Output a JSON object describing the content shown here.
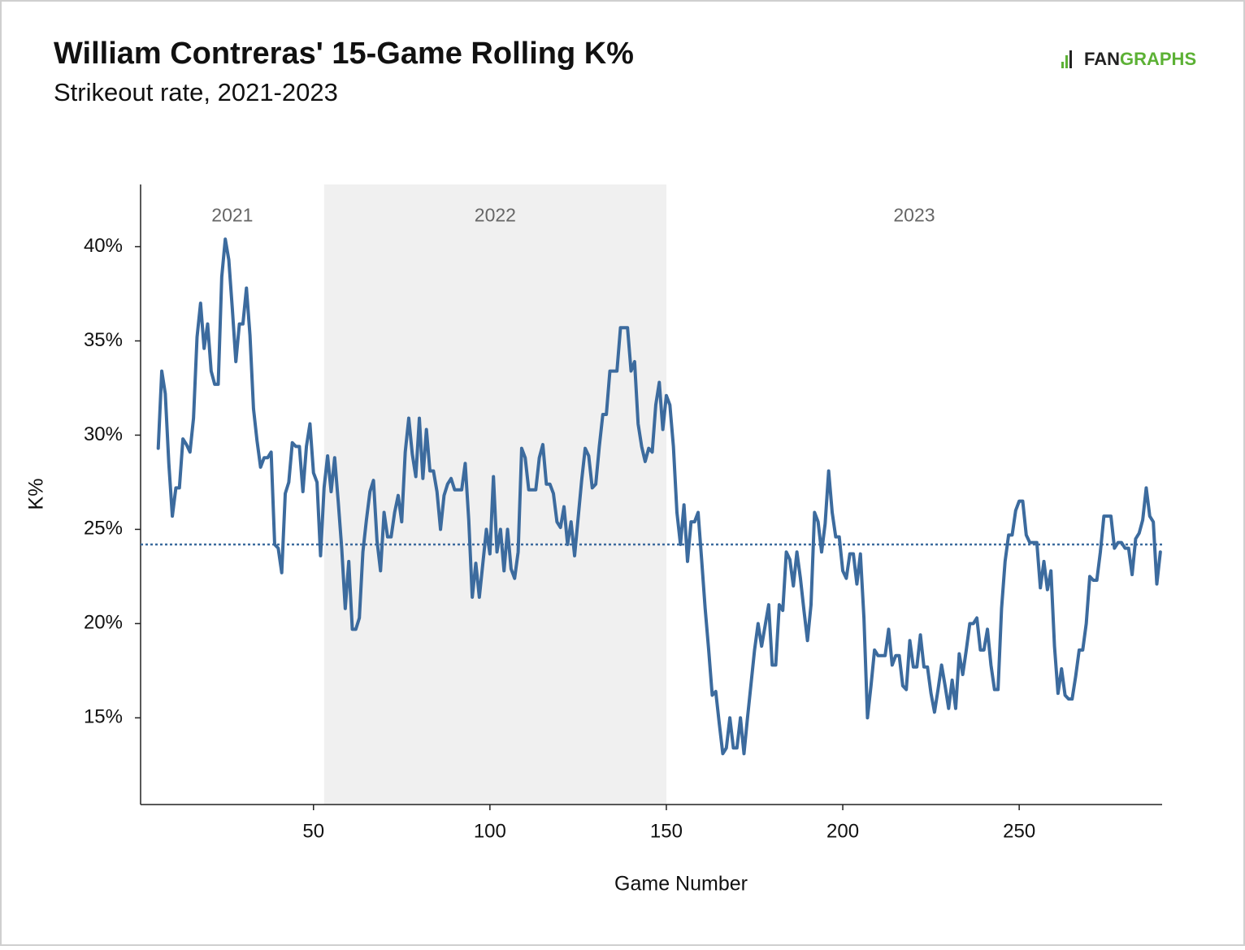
{
  "chart_data": {
    "type": "line",
    "title": "William Contreras' 15-Game Rolling K%",
    "subtitle": "Strikeout rate, 2021-2023",
    "logo": {
      "dark": "FAN",
      "green": "GRAPHS"
    },
    "xlabel": "Game Number",
    "ylabel": "K%",
    "color": "#3c6b9e",
    "reference_line": 24.2,
    "regions": [
      {
        "label": "2021",
        "start": 1,
        "end": 53,
        "shaded": false
      },
      {
        "label": "2022",
        "start": 53,
        "end": 150,
        "shaded": true
      },
      {
        "label": "2023",
        "start": 150,
        "end": 290.5,
        "shaded": false
      }
    ],
    "xlim": [
      1,
      290.5
    ],
    "xticks": [
      50,
      100,
      150,
      200,
      250
    ],
    "ylim": [
      10.4,
      43.3
    ],
    "yticks": [
      {
        "value": 15,
        "label": "15%"
      },
      {
        "value": 20,
        "label": "20%"
      },
      {
        "value": 25,
        "label": "25%"
      },
      {
        "value": 30,
        "label": "30%"
      },
      {
        "value": 35,
        "label": "35%"
      },
      {
        "value": 40,
        "label": "40%"
      }
    ],
    "x": [
      6,
      7,
      8,
      9,
      10,
      11,
      12,
      13,
      14,
      15,
      16,
      17,
      18,
      19,
      20,
      21,
      22,
      23,
      24,
      25,
      26,
      27,
      28,
      29,
      30,
      31,
      32,
      33,
      34,
      35,
      36,
      37,
      38,
      39,
      40,
      41,
      42,
      43,
      44,
      45,
      46,
      47,
      48,
      49,
      50,
      51,
      52,
      53,
      54,
      55,
      56,
      57,
      58,
      59,
      60,
      61,
      62,
      63,
      64,
      65,
      66,
      67,
      68,
      69,
      70,
      71,
      72,
      73,
      74,
      75,
      76,
      77,
      78,
      79,
      80,
      81,
      82,
      83,
      84,
      85,
      86,
      87,
      88,
      89,
      90,
      91,
      92,
      93,
      94,
      95,
      96,
      97,
      98,
      99,
      100,
      101,
      102,
      103,
      104,
      105,
      106,
      107,
      108,
      109,
      110,
      111,
      112,
      113,
      114,
      115,
      116,
      117,
      118,
      119,
      120,
      121,
      122,
      123,
      124,
      125,
      126,
      127,
      128,
      129,
      130,
      131,
      132,
      133,
      134,
      135,
      136,
      137,
      138,
      139,
      140,
      141,
      142,
      143,
      144,
      145,
      146,
      147,
      148,
      149,
      150,
      151,
      152,
      153,
      154,
      155,
      156,
      157,
      158,
      159,
      160,
      161,
      162,
      163,
      164,
      165,
      166,
      167,
      168,
      169,
      170,
      171,
      172,
      173,
      174,
      175,
      176,
      177,
      178,
      179,
      180,
      181,
      182,
      183,
      184,
      185,
      186,
      187,
      188,
      189,
      190,
      191,
      192,
      193,
      194,
      195,
      196,
      197,
      198,
      199,
      200,
      201,
      202,
      203,
      204,
      205,
      206,
      207,
      208,
      209,
      210,
      211,
      212,
      213,
      214,
      215,
      216,
      217,
      218,
      219,
      220,
      221,
      222,
      223,
      224,
      225,
      226,
      227,
      228,
      229,
      230,
      231,
      232,
      233,
      234,
      235,
      236,
      237,
      238,
      239,
      240,
      241,
      242,
      243,
      244,
      245,
      246,
      247,
      248,
      249,
      250,
      251,
      252,
      253,
      254,
      255,
      256,
      257,
      258,
      259,
      260,
      261,
      262,
      263,
      264,
      265,
      266,
      267,
      268,
      269,
      270,
      271,
      272,
      273,
      274,
      275,
      276,
      277,
      278,
      279,
      280,
      281,
      282,
      283,
      284,
      285,
      286,
      287,
      288,
      289,
      290
    ],
    "values": [
      29.3,
      33.4,
      32.2,
      28.5,
      25.7,
      27.2,
      27.2,
      29.8,
      29.5,
      29.1,
      30.9,
      35.2,
      37.0,
      34.6,
      35.9,
      33.4,
      32.7,
      32.7,
      38.4,
      40.4,
      39.3,
      36.7,
      33.9,
      35.9,
      35.9,
      37.8,
      35.3,
      31.4,
      29.7,
      28.3,
      28.8,
      28.8,
      29.1,
      24.2,
      24.0,
      22.7,
      26.9,
      27.5,
      29.6,
      29.4,
      29.4,
      27.0,
      29.4,
      30.6,
      28.0,
      27.5,
      23.6,
      27.2,
      28.9,
      27.0,
      28.8,
      26.5,
      24.0,
      20.8,
      23.3,
      19.7,
      19.7,
      20.3,
      23.8,
      25.5,
      27.0,
      27.6,
      24.4,
      22.8,
      25.9,
      24.6,
      24.6,
      25.9,
      26.8,
      25.4,
      29.1,
      30.9,
      29.0,
      27.8,
      30.9,
      27.7,
      30.3,
      28.1,
      28.1,
      27.0,
      25.0,
      26.8,
      27.4,
      27.7,
      27.1,
      27.1,
      27.1,
      28.5,
      25.5,
      21.4,
      23.2,
      21.4,
      23.2,
      25.0,
      23.7,
      27.8,
      23.8,
      25.0,
      22.8,
      25.0,
      22.9,
      22.4,
      23.8,
      29.3,
      28.8,
      27.1,
      27.1,
      27.1,
      28.8,
      29.5,
      27.4,
      27.4,
      26.9,
      25.4,
      25.1,
      26.2,
      24.2,
      25.4,
      23.6,
      25.6,
      27.6,
      29.3,
      28.9,
      27.2,
      27.4,
      29.4,
      31.1,
      31.1,
      33.4,
      33.4,
      33.4,
      35.7,
      35.7,
      35.7,
      33.4,
      33.9,
      30.6,
      29.4,
      28.6,
      29.3,
      29.1,
      31.6,
      32.8,
      30.3,
      32.1,
      31.6,
      29.4,
      25.9,
      24.2,
      26.3,
      23.3,
      25.4,
      25.4,
      25.9,
      23.4,
      20.8,
      18.6,
      16.2,
      16.4,
      14.7,
      13.1,
      13.4,
      15.0,
      13.4,
      13.4,
      15.0,
      13.1,
      15.0,
      16.8,
      18.6,
      20.0,
      18.8,
      19.9,
      21.0,
      17.8,
      17.8,
      21.0,
      20.7,
      23.8,
      23.4,
      22.0,
      23.8,
      22.4,
      20.7,
      19.1,
      21.0,
      25.9,
      25.4,
      23.8,
      25.3,
      28.1,
      25.9,
      24.6,
      24.6,
      22.8,
      22.4,
      23.7,
      23.7,
      22.1,
      23.7,
      20.3,
      15.0,
      16.7,
      18.6,
      18.3,
      18.3,
      18.3,
      19.7,
      17.8,
      18.3,
      18.3,
      16.7,
      16.5,
      19.1,
      17.7,
      17.7,
      19.4,
      17.7,
      17.7,
      16.3,
      15.3,
      16.5,
      17.8,
      16.7,
      15.5,
      17.0,
      15.5,
      18.4,
      17.3,
      18.6,
      20.0,
      20.0,
      20.3,
      18.6,
      18.6,
      19.7,
      17.8,
      16.5,
      16.5,
      20.8,
      23.3,
      24.7,
      24.7,
      26.0,
      26.5,
      26.5,
      24.7,
      24.3,
      24.3,
      24.3,
      21.9,
      23.3,
      21.8,
      22.8,
      18.8,
      16.3,
      17.6,
      16.2,
      16.0,
      16.0,
      17.2,
      18.6,
      18.6,
      20.0,
      22.5,
      22.3,
      22.3,
      23.8,
      25.7,
      25.7,
      25.7,
      24.0,
      24.3,
      24.3,
      24.0,
      24.0,
      22.6,
      24.5,
      24.8,
      25.5,
      27.2,
      25.7,
      25.4,
      22.1,
      23.8
    ]
  }
}
